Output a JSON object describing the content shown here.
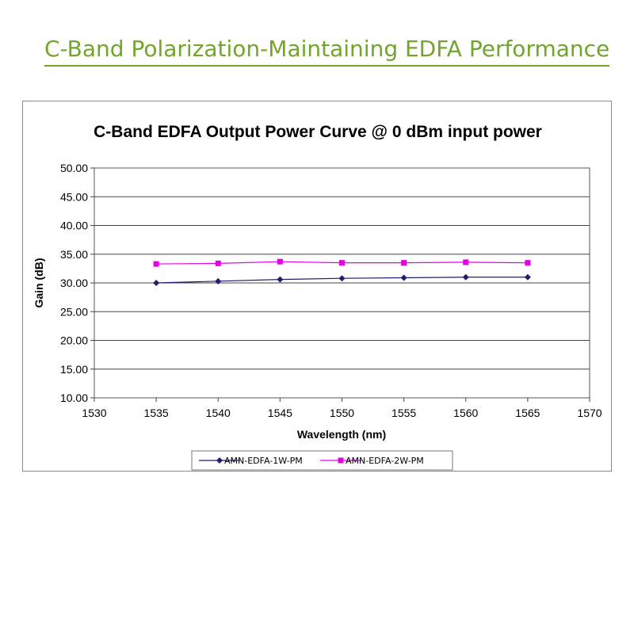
{
  "page": {
    "heading": "C-Band Polarization-Maintaining EDFA Performance"
  },
  "colors": {
    "heading": "#72a52b",
    "series_1w": "#1f1f6b",
    "series_2w": "#e400e4"
  },
  "chart_data": {
    "type": "line",
    "title": "C-Band EDFA Output Power Curve @ 0 dBm input power",
    "xlabel": "Wavelength (nm)",
    "ylabel": "Gain (dB)",
    "xlim": [
      1530,
      1570
    ],
    "ylim": [
      10,
      50
    ],
    "x_ticks": [
      "1530",
      "1535",
      "1540",
      "1545",
      "1550",
      "1555",
      "1560",
      "1565",
      "1570"
    ],
    "y_ticks": [
      "10.00",
      "15.00",
      "20.00",
      "25.00",
      "30.00",
      "35.00",
      "40.00",
      "45.00",
      "50.00"
    ],
    "grid": "horizontal",
    "legend_position": "bottom",
    "x": [
      1535,
      1540,
      1545,
      1550,
      1555,
      1560,
      1565
    ],
    "series": [
      {
        "name": "AMN-EDFA-1W-PM",
        "marker": "diamond",
        "color": "#1f1f6b",
        "values": [
          30.0,
          30.3,
          30.6,
          30.8,
          30.9,
          31.0,
          31.0
        ]
      },
      {
        "name": "AMN-EDFA-2W-PM",
        "marker": "square",
        "color": "#e400e4",
        "values": [
          33.3,
          33.4,
          33.7,
          33.5,
          33.5,
          33.6,
          33.5
        ]
      }
    ]
  }
}
